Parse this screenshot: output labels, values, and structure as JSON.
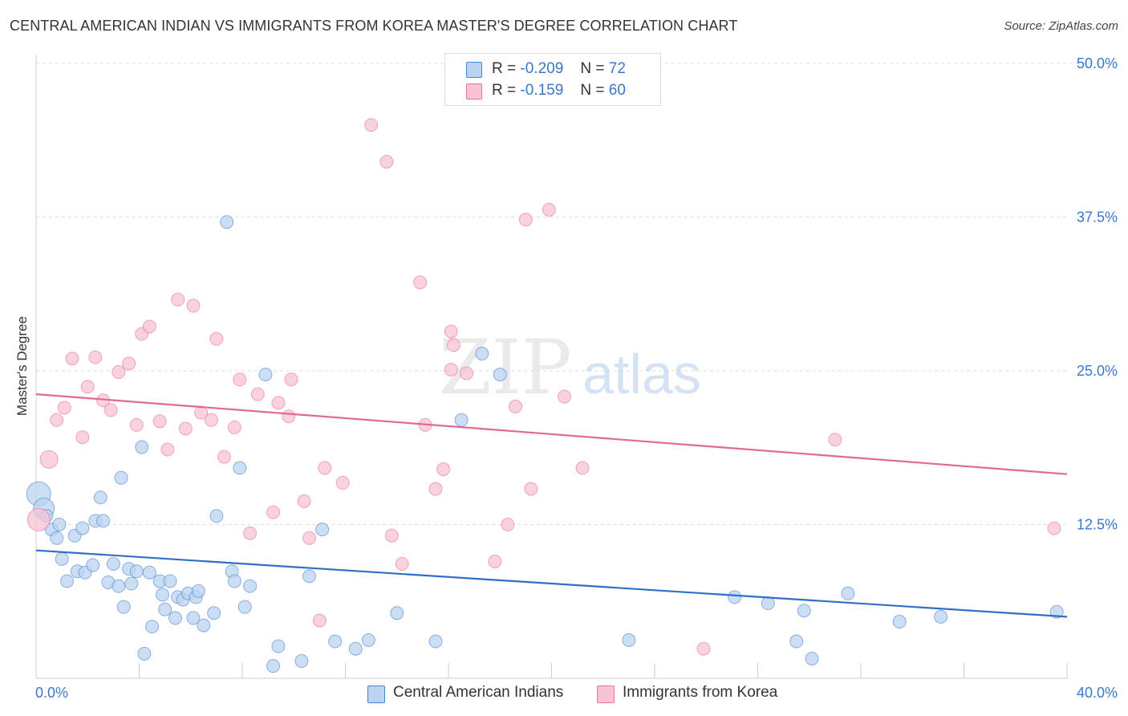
{
  "title": "CENTRAL AMERICAN INDIAN VS IMMIGRANTS FROM KOREA MASTER'S DEGREE CORRELATION CHART",
  "source": "Source: ZipAtlas.com",
  "watermark": {
    "zip": "ZIP",
    "atlas": "atlas"
  },
  "legend": {
    "blue": {
      "r_label": "R =",
      "r_value": "-0.209",
      "n_label": "N =",
      "n_value": "72"
    },
    "pink": {
      "r_label": "R =",
      "r_value": "-0.159",
      "n_label": "N =",
      "n_value": "60"
    }
  },
  "colors": {
    "blue": "#4a86d0",
    "blue_fill": "#b9d3f0",
    "pink": "#e8739a",
    "pink_fill": "#f8c3d3",
    "value_text": "#3a78c9",
    "grid": "#dddddd"
  },
  "chart_data": {
    "type": "scatter",
    "title": "CENTRAL AMERICAN INDIAN VS IMMIGRANTS FROM KOREA MASTER'S DEGREE CORRELATION CHART",
    "xlabel": "",
    "ylabel": "Master's Degree",
    "xlim": [
      0,
      40
    ],
    "ylim": [
      0,
      50
    ],
    "x_tick_labels": [
      "0.0%",
      "40.0%"
    ],
    "y_ticks": [
      12.5,
      25.0,
      37.5,
      50.0
    ],
    "y_tick_labels": [
      "12.5%",
      "25.0%",
      "37.5%",
      "50.0%"
    ],
    "grid": true,
    "series": [
      {
        "name": "Central American Indians",
        "color": "blue",
        "trend": [
          [
            0,
            10.4
          ],
          [
            40,
            5.0
          ]
        ],
        "points": [
          [
            0.1,
            15.0
          ],
          [
            0.3,
            13.8
          ],
          [
            0.4,
            13.2
          ],
          [
            0.6,
            12.1
          ],
          [
            0.8,
            11.4
          ],
          [
            0.9,
            12.5
          ],
          [
            1.0,
            9.7
          ],
          [
            1.2,
            7.9
          ],
          [
            1.5,
            11.6
          ],
          [
            1.6,
            8.7
          ],
          [
            1.8,
            12.2
          ],
          [
            1.9,
            8.6
          ],
          [
            2.2,
            9.2
          ],
          [
            2.3,
            12.8
          ],
          [
            2.5,
            14.7
          ],
          [
            2.6,
            12.8
          ],
          [
            2.8,
            7.8
          ],
          [
            3.0,
            9.3
          ],
          [
            3.2,
            7.5
          ],
          [
            3.3,
            16.3
          ],
          [
            3.4,
            5.8
          ],
          [
            3.6,
            8.9
          ],
          [
            3.7,
            7.7
          ],
          [
            3.9,
            8.7
          ],
          [
            4.1,
            18.8
          ],
          [
            4.2,
            2.0
          ],
          [
            4.4,
            8.6
          ],
          [
            4.5,
            4.2
          ],
          [
            4.8,
            7.9
          ],
          [
            4.9,
            6.8
          ],
          [
            5.0,
            5.6
          ],
          [
            5.2,
            7.9
          ],
          [
            5.4,
            4.9
          ],
          [
            5.5,
            6.6
          ],
          [
            5.7,
            6.4
          ],
          [
            5.9,
            6.9
          ],
          [
            6.1,
            4.9
          ],
          [
            6.2,
            6.6
          ],
          [
            6.3,
            7.1
          ],
          [
            6.5,
            4.3
          ],
          [
            6.9,
            5.3
          ],
          [
            7.0,
            13.2
          ],
          [
            7.4,
            37.1
          ],
          [
            7.6,
            8.7
          ],
          [
            7.7,
            7.9
          ],
          [
            7.9,
            17.1
          ],
          [
            8.1,
            5.8
          ],
          [
            8.3,
            7.5
          ],
          [
            8.9,
            24.7
          ],
          [
            9.2,
            1.0
          ],
          [
            9.4,
            2.6
          ],
          [
            10.3,
            1.4
          ],
          [
            10.6,
            8.3
          ],
          [
            11.1,
            12.1
          ],
          [
            11.6,
            3.0
          ],
          [
            12.4,
            2.4
          ],
          [
            12.9,
            3.1
          ],
          [
            14.0,
            5.3
          ],
          [
            15.5,
            3.0
          ],
          [
            16.5,
            21.0
          ],
          [
            17.3,
            26.4
          ],
          [
            18.0,
            24.7
          ],
          [
            23.0,
            3.1
          ],
          [
            27.1,
            6.6
          ],
          [
            28.4,
            6.1
          ],
          [
            29.5,
            3.0
          ],
          [
            29.8,
            5.5
          ],
          [
            30.1,
            1.6
          ],
          [
            31.5,
            6.9
          ],
          [
            33.5,
            4.6
          ],
          [
            35.1,
            5.0
          ],
          [
            39.6,
            5.4
          ]
        ]
      },
      {
        "name": "Immigrants from Korea",
        "color": "pink",
        "trend": [
          [
            0,
            23.1
          ],
          [
            40,
            16.6
          ]
        ],
        "points": [
          [
            0.1,
            12.9
          ],
          [
            0.5,
            17.8
          ],
          [
            0.8,
            21.0
          ],
          [
            1.1,
            22.0
          ],
          [
            1.4,
            26.0
          ],
          [
            1.8,
            19.6
          ],
          [
            2.0,
            23.7
          ],
          [
            2.3,
            26.1
          ],
          [
            2.6,
            22.6
          ],
          [
            2.9,
            21.8
          ],
          [
            3.2,
            24.9
          ],
          [
            3.6,
            25.6
          ],
          [
            3.9,
            20.6
          ],
          [
            4.1,
            28.0
          ],
          [
            4.4,
            28.6
          ],
          [
            4.8,
            20.9
          ],
          [
            5.1,
            18.6
          ],
          [
            5.5,
            30.8
          ],
          [
            5.8,
            20.3
          ],
          [
            6.1,
            30.3
          ],
          [
            6.4,
            21.6
          ],
          [
            6.8,
            21.0
          ],
          [
            7.0,
            27.6
          ],
          [
            7.3,
            18.0
          ],
          [
            7.7,
            20.4
          ],
          [
            7.9,
            24.3
          ],
          [
            8.3,
            11.8
          ],
          [
            8.6,
            23.1
          ],
          [
            9.2,
            13.5
          ],
          [
            9.4,
            22.4
          ],
          [
            9.8,
            21.3
          ],
          [
            9.9,
            24.3
          ],
          [
            10.4,
            14.4
          ],
          [
            10.6,
            11.4
          ],
          [
            11.0,
            4.7
          ],
          [
            11.2,
            17.1
          ],
          [
            11.9,
            15.9
          ],
          [
            13.0,
            45.0
          ],
          [
            13.6,
            42.0
          ],
          [
            13.8,
            11.6
          ],
          [
            14.2,
            9.3
          ],
          [
            14.9,
            32.2
          ],
          [
            15.1,
            20.6
          ],
          [
            15.5,
            15.4
          ],
          [
            15.8,
            17.0
          ],
          [
            16.1,
            25.1
          ],
          [
            16.1,
            28.2
          ],
          [
            16.2,
            27.1
          ],
          [
            16.7,
            24.8
          ],
          [
            17.8,
            9.5
          ],
          [
            18.3,
            12.5
          ],
          [
            18.6,
            22.1
          ],
          [
            19.0,
            37.3
          ],
          [
            19.2,
            15.4
          ],
          [
            19.9,
            38.1
          ],
          [
            20.5,
            22.9
          ],
          [
            21.2,
            17.1
          ],
          [
            25.9,
            2.4
          ],
          [
            31.0,
            19.4
          ],
          [
            39.5,
            12.2
          ]
        ]
      }
    ]
  }
}
